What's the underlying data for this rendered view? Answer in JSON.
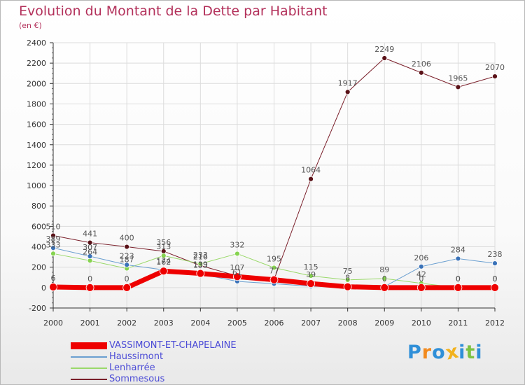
{
  "title": "Evolution du Montant de la Dette par Habitant",
  "subtitle": "(en €)",
  "logo": {
    "letters": [
      "P",
      "r",
      "o",
      "x",
      "i",
      "t",
      "i"
    ],
    "colors": [
      "#2f8fd8",
      "#f28a1e",
      "#2f8fd8",
      "#f2b21e",
      "#2f8fd8",
      "#7cc243",
      "#2f8fd8"
    ]
  },
  "chart_data": {
    "type": "line",
    "categories": [
      "2000",
      "2001",
      "2002",
      "2003",
      "2004",
      "2005",
      "2006",
      "2007",
      "2008",
      "2009",
      "2010",
      "2011",
      "2012"
    ],
    "ylim": [
      -200,
      2400
    ],
    "yticks": [
      -200,
      0,
      200,
      400,
      600,
      800,
      1000,
      1200,
      1400,
      1600,
      1800,
      2000,
      2200,
      2400
    ],
    "grid": true,
    "legend_position": "bottom-left",
    "series": [
      {
        "name": "Sommesous",
        "color": "#7a1f2a",
        "marker": "#5a1218",
        "width": 1,
        "values": [
          510,
          441,
          400,
          356,
          216,
          114,
          78,
          1064,
          1917,
          2249,
          2106,
          1965,
          2070
        ],
        "labels": [
          "510",
          "441",
          "400",
          "356",
          "216",
          "",
          "",
          "1064",
          "1917",
          "2249",
          "2106",
          "1965",
          "2070"
        ]
      },
      {
        "name": "Lenharrée",
        "color": "#9ad96a",
        "marker": "#86d34f",
        "width": 1,
        "values": [
          333,
          264,
          187,
          313,
          233,
          332,
          195,
          115,
          75,
          89,
          42,
          0,
          0
        ],
        "labels": [
          "333",
          "264",
          "187",
          "313",
          "233",
          "332",
          "195",
          "115",
          "75",
          "89",
          "42",
          "0",
          "0"
        ]
      },
      {
        "name": "Haussimont",
        "color": "#6a9fd0",
        "marker": "#3a72b8",
        "width": 1,
        "values": [
          389,
          307,
          223,
          174,
          133,
          61,
          38,
          13,
          8,
          10,
          206,
          284,
          238
        ],
        "labels": [
          "389",
          "307",
          "223",
          "174",
          "133",
          "61",
          "",
          "",
          "",
          "",
          "206",
          "284",
          "238"
        ]
      },
      {
        "name": "VASSIMONT-ET-CHAPELAINE",
        "color": "#ee0000",
        "marker": "#ee0000",
        "width": 7,
        "values": [
          6,
          0,
          0,
          162,
          139,
          107,
          77,
          39,
          8,
          0,
          0,
          0,
          0
        ],
        "labels": [
          "6",
          "0",
          "0",
          "162",
          "139",
          "107",
          "77",
          "39",
          "8",
          "0",
          "0",
          "0",
          "0"
        ]
      }
    ]
  },
  "legend_order": [
    "VASSIMONT-ET-CHAPELAINE",
    "Haussimont",
    "Lenharrée",
    "Sommesous"
  ]
}
